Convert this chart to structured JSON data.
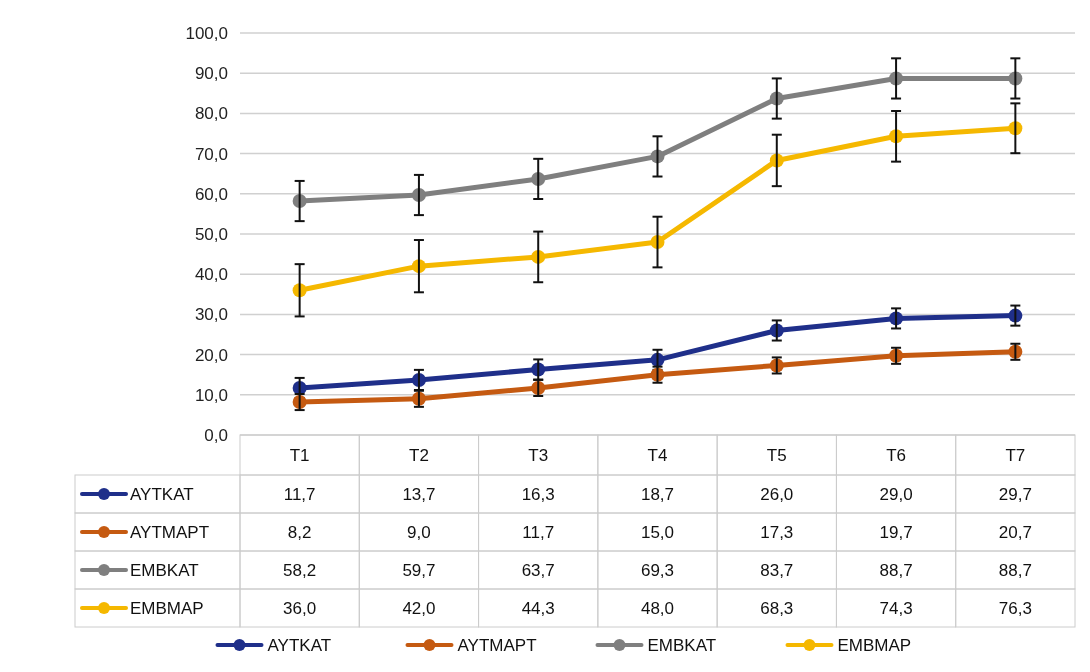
{
  "chart_data": {
    "type": "line",
    "categories": [
      "T1",
      "T2",
      "T3",
      "T4",
      "T5",
      "T6",
      "T7"
    ],
    "series": [
      {
        "name": "AYTKAT",
        "color": "#1f2f8a",
        "values": [
          11.7,
          13.7,
          16.3,
          18.7,
          26.0,
          29.0,
          29.7
        ],
        "errors": [
          2.5,
          2.5,
          2.5,
          2.5,
          2.5,
          2.5,
          2.5
        ],
        "value_labels": [
          "11,7",
          "13,7",
          "16,3",
          "18,7",
          "26,0",
          "29,0",
          "29,7"
        ]
      },
      {
        "name": "AYTMAPT",
        "color": "#c55a11",
        "values": [
          8.2,
          9.0,
          11.7,
          15.0,
          17.3,
          19.7,
          20.7
        ],
        "errors": [
          2,
          2,
          2,
          2,
          2,
          2,
          2
        ],
        "value_labels": [
          "8,2",
          "9,0",
          "11,7",
          "15,0",
          "17,3",
          "19,7",
          "20,7"
        ]
      },
      {
        "name": "EMBKAT",
        "color": "#7f7f7f",
        "values": [
          58.2,
          59.7,
          63.7,
          69.3,
          83.7,
          88.7,
          88.7
        ],
        "errors": [
          5,
          5,
          5,
          5,
          5,
          5,
          5
        ],
        "value_labels": [
          "58,2",
          "59,7",
          "63,7",
          "69,3",
          "83,7",
          "88,7",
          "88,7"
        ]
      },
      {
        "name": "EMBMAP",
        "color": "#f5b800",
        "values": [
          36.0,
          42.0,
          44.3,
          48.0,
          68.3,
          74.3,
          76.3
        ],
        "errors": [
          6.5,
          6.5,
          6.3,
          6.3,
          6.4,
          6.3,
          6.2
        ],
        "value_labels": [
          "36,0",
          "42,0",
          "44,3",
          "48,0",
          "68,3",
          "74,3",
          "76,3"
        ]
      }
    ],
    "ylim": [
      0,
      100
    ],
    "yticks": [
      {
        "value": 0,
        "label": "0,0"
      },
      {
        "value": 10,
        "label": "10,0"
      },
      {
        "value": 20,
        "label": "20,0"
      },
      {
        "value": 30,
        "label": "30,0"
      },
      {
        "value": 40,
        "label": "40,0"
      },
      {
        "value": 50,
        "label": "50,0"
      },
      {
        "value": 60,
        "label": "60,0"
      },
      {
        "value": 70,
        "label": "70,0"
      },
      {
        "value": 80,
        "label": "80,0"
      },
      {
        "value": 90,
        "label": "90,0"
      },
      {
        "value": 100,
        "label": "100,0"
      }
    ],
    "grid": "y",
    "marker": "circle",
    "line_style": "solid",
    "legend": "bottom"
  }
}
